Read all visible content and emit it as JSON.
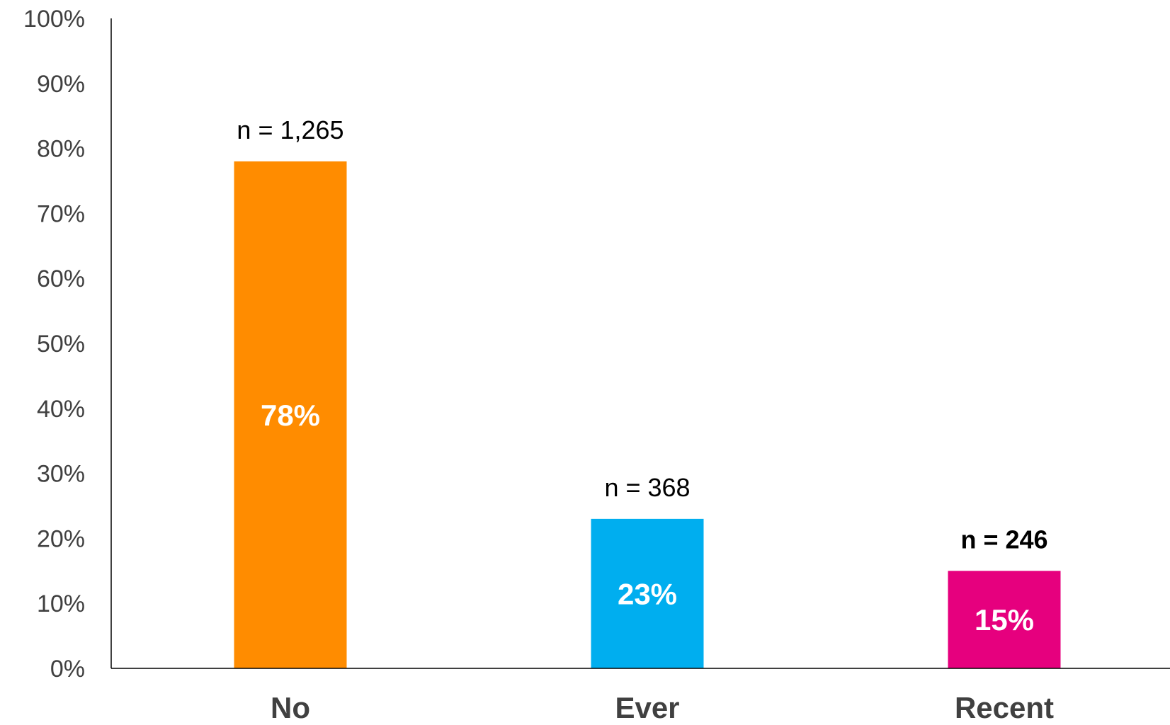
{
  "chart_data": {
    "type": "bar",
    "categories": [
      "No",
      "Ever",
      "Recent"
    ],
    "values": [
      78,
      23,
      15
    ],
    "value_labels": [
      "78%",
      "23%",
      "15%"
    ],
    "sample_sizes": [
      "n = 1,265",
      "n = 368",
      "n = 246"
    ],
    "sample_size_bold": [
      false,
      false,
      true
    ],
    "colors": [
      "#FF8C00",
      "#00AEEF",
      "#E6007E"
    ],
    "ylim": [
      0,
      100
    ],
    "yticks": [
      "0%",
      "10%",
      "20%",
      "30%",
      "40%",
      "50%",
      "60%",
      "70%",
      "80%",
      "90%",
      "100%"
    ],
    "grid": false,
    "title": "",
    "xlabel": "",
    "ylabel": ""
  }
}
